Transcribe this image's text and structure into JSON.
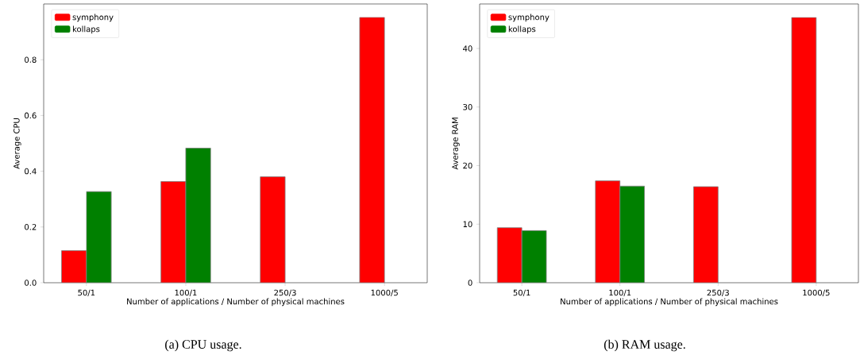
{
  "chart_data": [
    {
      "type": "bar",
      "title": "(a)  CPU usage.",
      "xlabel": "Number of applications / Number of physical machines",
      "ylabel": "Average CPU",
      "categories": [
        "50/1",
        "100/1",
        "250/3",
        "1000/5"
      ],
      "series": [
        {
          "name": "symphony",
          "color": "#ff0000",
          "values": [
            0.115,
            0.363,
            0.38,
            0.952
          ]
        },
        {
          "name": "kollaps",
          "color": "#008000",
          "values": [
            0.327,
            0.483,
            null,
            null
          ]
        }
      ],
      "ylim": [
        0,
        1.0
      ],
      "yticks": [
        {
          "value": 0,
          "label": "0.0"
        },
        0.2,
        0.4,
        0.6,
        0.8
      ],
      "legend": "top left"
    },
    {
      "type": "bar",
      "title": "(b)  RAM usage.",
      "xlabel": "Number of applications / Number of physical machines",
      "ylabel": "Average RAM",
      "categories": [
        "50/1",
        "100/1",
        "250/3",
        "1000/5"
      ],
      "series": [
        {
          "name": "symphony",
          "color": "#ff0000",
          "values": [
            9.4,
            17.4,
            16.4,
            45.3
          ]
        },
        {
          "name": "kollaps",
          "color": "#008000",
          "values": [
            8.9,
            16.5,
            null,
            null
          ]
        }
      ],
      "ylim": [
        0,
        47.6
      ],
      "yticks": [
        0,
        10,
        20,
        30,
        40
      ],
      "legend": "top left"
    }
  ]
}
